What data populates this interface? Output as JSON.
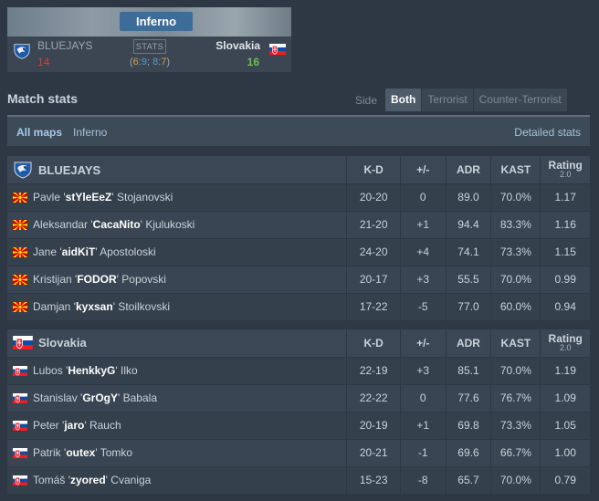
{
  "header": {
    "map_name": "Inferno",
    "team1": {
      "name": "BLUEJAYS",
      "score": "14"
    },
    "team2": {
      "name": "Slovakia",
      "score": "16"
    },
    "stats_label": "STATS",
    "half_scores": {
      "open": "(",
      "t1": "6",
      "sep1": ":",
      "ct1": "9",
      "sep2": "; ",
      "t2": "8",
      "sep3": ":",
      "ct2": "7",
      "close": ")"
    }
  },
  "match_stats": {
    "title": "Match stats",
    "side_label": "Side",
    "side_options": [
      "Both",
      "Terrorist",
      "Counter-Terrorist"
    ],
    "side_selected": "Both"
  },
  "maps_bar": {
    "all_maps": "All maps",
    "map": "Inferno",
    "detailed": "Detailed stats"
  },
  "columns": {
    "kd": "K-D",
    "pm": "+/-",
    "adr": "ADR",
    "kast": "KAST",
    "rating": "Rating",
    "rating_ver": "2.0"
  },
  "teams": [
    {
      "name": "BLUEJAYS",
      "logo_icon": "bluejays-logo-icon",
      "players": [
        {
          "flag_icon": "macedonia-flag-icon",
          "first": "Pavle '",
          "nick": "stYleEeZ",
          "last": "' Stojanovski",
          "kd": "20-20",
          "pm": "0",
          "adr": "89.0",
          "kast": "70.0%",
          "rating": "1.17"
        },
        {
          "flag_icon": "macedonia-flag-icon",
          "first": "Aleksandar '",
          "nick": "CacaNito",
          "last": "' Kjulukoski",
          "kd": "21-20",
          "pm": "+1",
          "adr": "94.4",
          "kast": "83.3%",
          "rating": "1.16"
        },
        {
          "flag_icon": "macedonia-flag-icon",
          "first": "Jane '",
          "nick": "aidKiT",
          "last": "' Apostoloski",
          "kd": "24-20",
          "pm": "+4",
          "adr": "74.1",
          "kast": "73.3%",
          "rating": "1.15"
        },
        {
          "flag_icon": "macedonia-flag-icon",
          "first": "Kristijan '",
          "nick": "FODOR",
          "last": "' Popovski",
          "kd": "20-17",
          "pm": "+3",
          "adr": "55.5",
          "kast": "70.0%",
          "rating": "0.99"
        },
        {
          "flag_icon": "macedonia-flag-icon",
          "first": "Damjan '",
          "nick": "kyxsan",
          "last": "' Stoilkovski",
          "kd": "17-22",
          "pm": "-5",
          "adr": "77.0",
          "kast": "60.0%",
          "rating": "0.94"
        }
      ]
    },
    {
      "name": "Slovakia",
      "logo_icon": "slovakia-flag-icon",
      "players": [
        {
          "flag_icon": "slovakia-flag-icon",
          "first": "Lubos '",
          "nick": "HenkkyG",
          "last": "' Ilko",
          "kd": "22-19",
          "pm": "+3",
          "adr": "85.1",
          "kast": "70.0%",
          "rating": "1.19"
        },
        {
          "flag_icon": "slovakia-flag-icon",
          "first": "Stanislav '",
          "nick": "GrOgY",
          "last": "' Babala",
          "kd": "22-22",
          "pm": "0",
          "adr": "77.6",
          "kast": "76.7%",
          "rating": "1.09"
        },
        {
          "flag_icon": "slovakia-flag-icon",
          "first": "Peter '",
          "nick": "jaro",
          "last": "' Rauch",
          "kd": "20-19",
          "pm": "+1",
          "adr": "69.8",
          "kast": "73.3%",
          "rating": "1.05"
        },
        {
          "flag_icon": "slovakia-flag-icon",
          "first": "Patrik '",
          "nick": "outex",
          "last": "' Tomko",
          "kd": "20-21",
          "pm": "-1",
          "adr": "69.6",
          "kast": "66.7%",
          "rating": "1.00"
        },
        {
          "flag_icon": "slovakia-flag-icon",
          "first": "Tomáš '",
          "nick": "zyored",
          "last": "' Cvaniga",
          "kd": "15-23",
          "pm": "-8",
          "adr": "65.7",
          "kast": "70.0%",
          "rating": "0.79"
        }
      ]
    }
  ],
  "colors": {
    "positive": "#5fc14b",
    "negative": "#d8463f",
    "accent": "#3c6c9a"
  }
}
